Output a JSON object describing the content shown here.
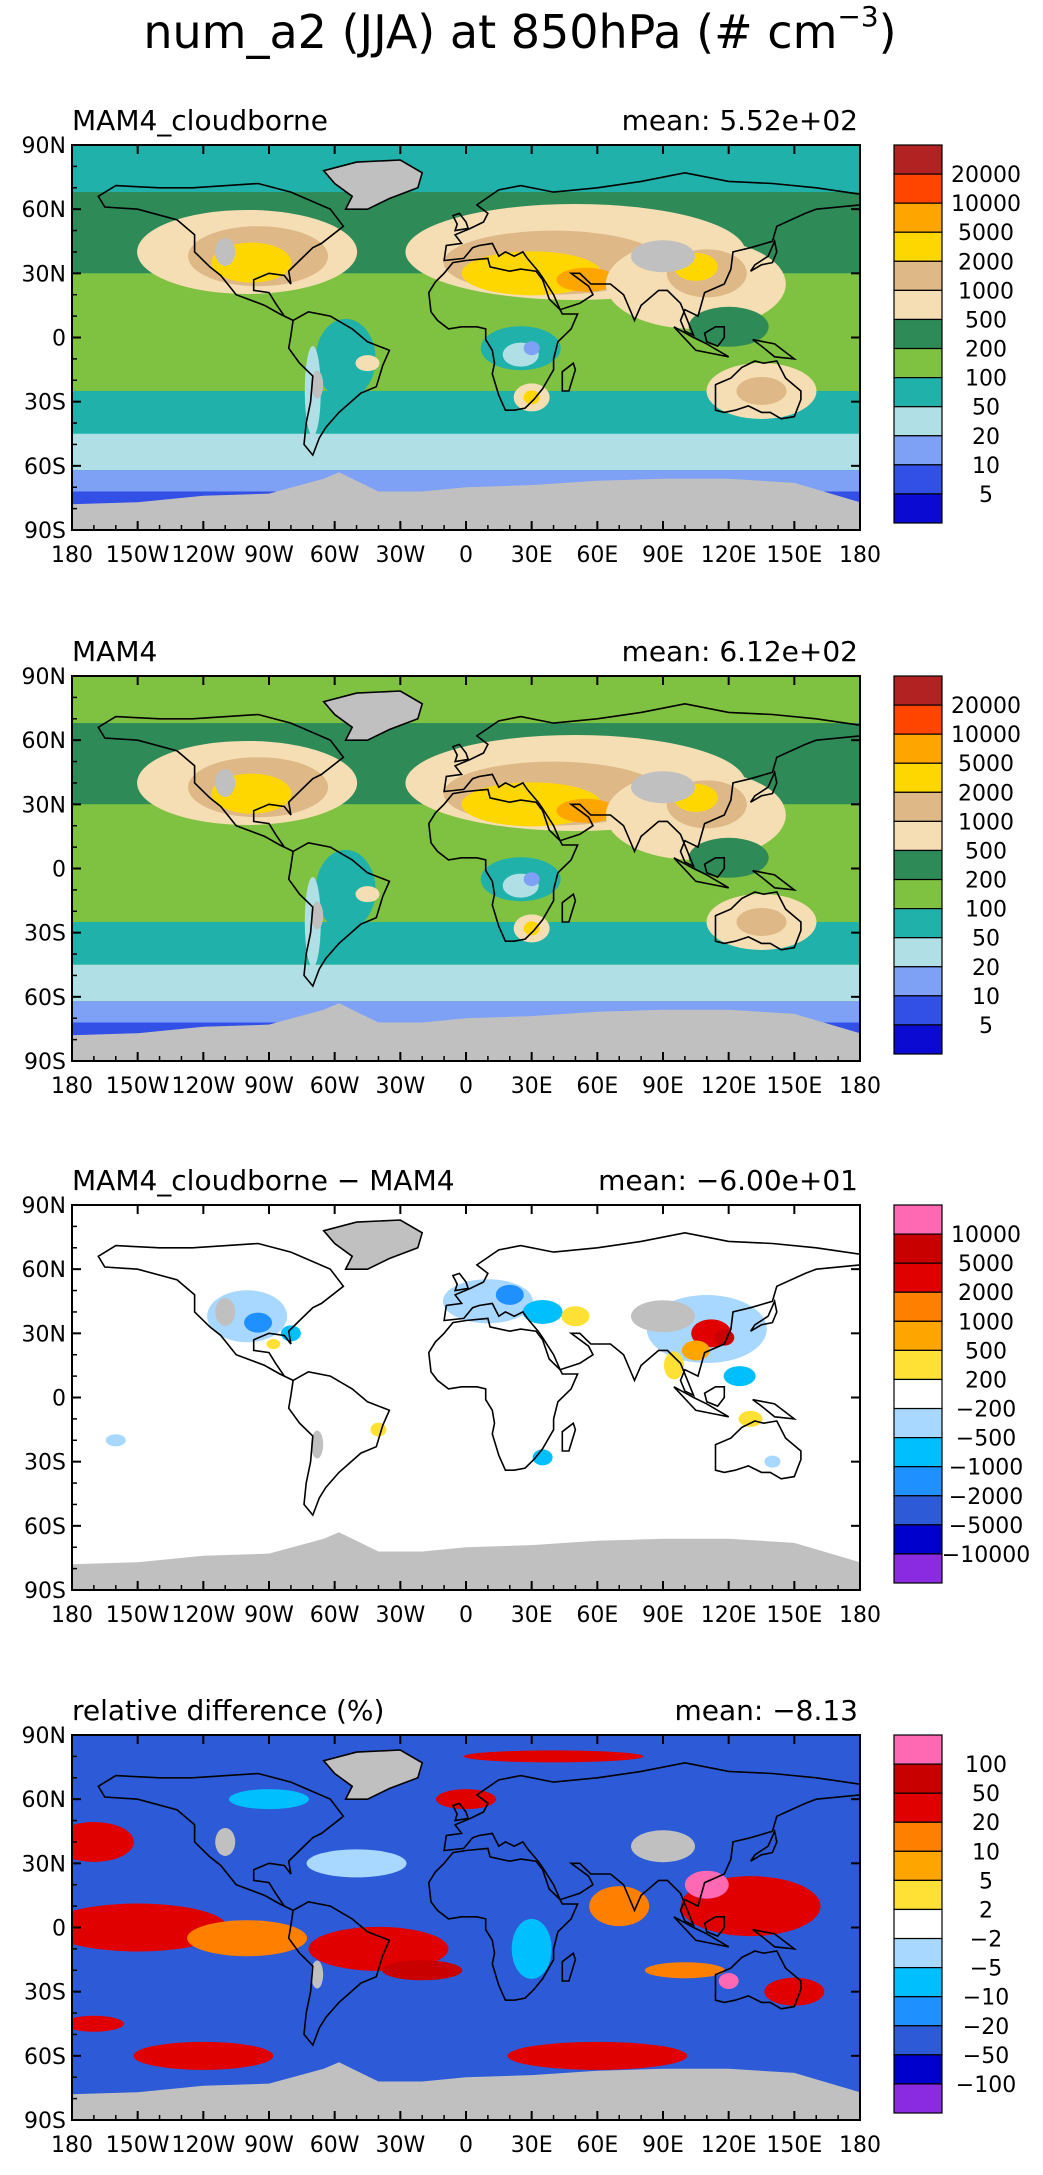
{
  "figure": {
    "title": "num_a2 (JJA) at 850hPa (# cm",
    "title_superscript": "−3",
    "title_close": ")"
  },
  "colors": {
    "land_missing": "#c0c0c0",
    "coast": "#000000",
    "abs_levels": [
      "#0a0ad2",
      "#3250e6",
      "#7ea0f5",
      "#b0e0e6",
      "#20b2aa",
      "#7fc241",
      "#2e8b57",
      "#f5deb3",
      "#deb887",
      "#ffd700",
      "#ffa500",
      "#ff4500",
      "#b22222"
    ],
    "diff_levels": [
      "#8a2be2",
      "#0000cd",
      "#2d5bd8",
      "#1e90ff",
      "#00bfff",
      "#a8d8ff",
      "#ffffff",
      "#ffe135",
      "#ffa500",
      "#ff7f00",
      "#e00000",
      "#c80000",
      "#ff69b4"
    ]
  },
  "panels": [
    {
      "title": "MAM4_cloudborne",
      "mean_text": "mean: 5.52e+02",
      "field": "absolute",
      "colorbar": [
        "20000",
        "10000",
        "5000",
        "2000",
        "1000",
        "500",
        "200",
        "100",
        "50",
        "20",
        "10",
        "5"
      ]
    },
    {
      "title": "MAM4",
      "mean_text": "mean: 6.12e+02",
      "field": "absolute",
      "colorbar": [
        "20000",
        "10000",
        "5000",
        "2000",
        "1000",
        "500",
        "200",
        "100",
        "50",
        "20",
        "10",
        "5"
      ]
    },
    {
      "title": "MAM4_cloudborne − MAM4",
      "mean_text": "mean: −6.00e+01",
      "field": "difference",
      "colorbar": [
        "10000",
        "5000",
        "2000",
        "1000",
        "500",
        "200",
        "−200",
        "−500",
        "−1000",
        "−2000",
        "−5000",
        "−10000"
      ]
    },
    {
      "title": "relative difference (%)",
      "mean_text": "mean: −8.13",
      "field": "relative",
      "colorbar": [
        "100",
        "50",
        "20",
        "10",
        "5",
        "2",
        "−2",
        "−5",
        "−10",
        "−20",
        "−50",
        "−100"
      ]
    }
  ],
  "axes": {
    "lat_labels": [
      "90N",
      "60N",
      "30N",
      "0",
      "30S",
      "60S",
      "90S"
    ],
    "lon_labels": [
      "180",
      "150W",
      "120W",
      "90W",
      "60W",
      "30W",
      "0",
      "30E",
      "60E",
      "90E",
      "120E",
      "150E",
      "180"
    ]
  }
}
